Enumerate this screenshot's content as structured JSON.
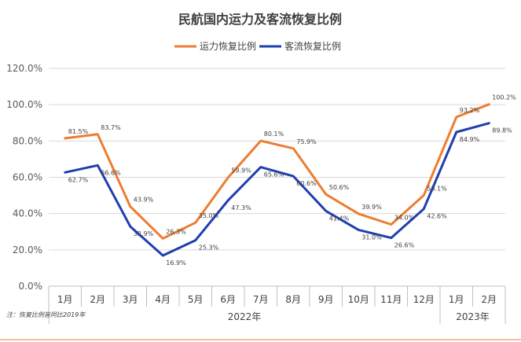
{
  "chart_data": {
    "type": "line",
    "title": "民航国内运力及客流恢复比例",
    "categories": [
      "1月",
      "2月",
      "3月",
      "4月",
      "5月",
      "6月",
      "7月",
      "8月",
      "9月",
      "10月",
      "11月",
      "12月",
      "1月",
      "2月"
    ],
    "groups": [
      {
        "label": "2022年",
        "count": 12
      },
      {
        "label": "2023年",
        "count": 2
      }
    ],
    "ylim": [
      0,
      120
    ],
    "yticks": [
      "0.0%",
      "20.0%",
      "40.0%",
      "60.0%",
      "80.0%",
      "100.0%",
      "120.0%"
    ],
    "legend_position": "top-center",
    "grid": "horizontal",
    "series": [
      {
        "name": "运力恢复比例",
        "color": "#ED7D31",
        "values": [
          81.5,
          83.7,
          43.9,
          26.3,
          35.0,
          59.9,
          80.1,
          75.9,
          50.6,
          39.9,
          34.0,
          50.1,
          93.2,
          100.2
        ],
        "labels": [
          "81.5%",
          "83.7%",
          "43.9%",
          "26.3%",
          "35.0%",
          "59.9%",
          "80.1%",
          "75.9%",
          "50.6%",
          "39.9%",
          "34.0%",
          "50.1%",
          "93.2%",
          "100.2%"
        ]
      },
      {
        "name": "客流恢复比例",
        "color": "#1F3FAF",
        "values": [
          62.7,
          66.6,
          32.9,
          16.9,
          25.3,
          47.3,
          65.6,
          60.6,
          41.4,
          31.0,
          26.6,
          42.6,
          84.9,
          89.8
        ],
        "labels": [
          "62.7%",
          "66.6%",
          "32.9%",
          "16.9%",
          "25.3%",
          "47.3%",
          "65.6%",
          "60.6%",
          "41.4%",
          "31.0%",
          "26.6%",
          "42.6%",
          "84.9%",
          "89.8%"
        ]
      }
    ],
    "note": "注：恢复比例皆同比2019年"
  }
}
